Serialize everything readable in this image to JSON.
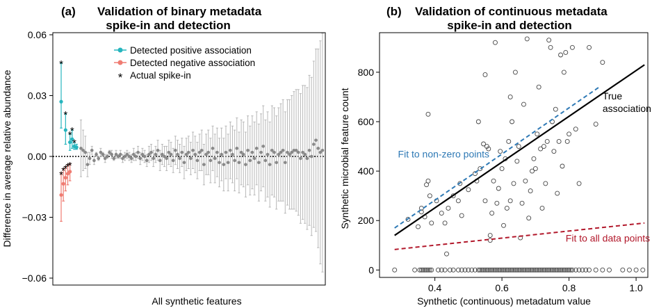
{
  "chart_data": [
    {
      "type": "scatter",
      "panel_label": "(a)",
      "title": [
        "Validation of binary metadata",
        "spike-in and detection"
      ],
      "xlabel": "All synthetic features",
      "ylabel": "Difference in average relative abundance",
      "ylim": [
        -0.06,
        0.06
      ],
      "yticks": [
        -0.06,
        -0.03,
        0.0,
        0.03,
        0.06
      ],
      "ytick_labels": [
        "−0.06",
        "−0.03",
        "0.00",
        "0.03",
        "0.06"
      ],
      "legend": [
        {
          "label": "Detected positive association",
          "color": "#26b5be",
          "marker": "dot-line"
        },
        {
          "label": "Detected negative association",
          "color": "#ef7c72",
          "marker": "dot-line"
        },
        {
          "label": "Actual spike-in",
          "color": "#000000",
          "marker": "*"
        }
      ],
      "spike_marker": "*",
      "zero_line": "dotted",
      "n_features": 120,
      "colors": {
        "positive": "#26b5be",
        "negative": "#ef7c72",
        "other": "#888888",
        "errorbar": "#b8b8b8"
      },
      "positive": [
        {
          "x": 1,
          "y": 0.027,
          "lo": 0.014,
          "hi": 0.046,
          "spike": true
        },
        {
          "x": 3,
          "y": 0.013,
          "lo": 0.006,
          "hi": 0.021,
          "spike": true
        },
        {
          "x": 5,
          "y": 0.007,
          "lo": 0.003,
          "hi": 0.011,
          "spike": true
        },
        {
          "x": 6,
          "y": 0.0085,
          "lo": 0.004,
          "hi": 0.013,
          "spike": true
        },
        {
          "x": 7,
          "y": 0.005,
          "lo": 0.0035,
          "hi": 0.007,
          "spike": true
        },
        {
          "x": 8,
          "y": 0.0045,
          "lo": 0.0035,
          "hi": 0.006,
          "spike": false
        }
      ],
      "negative": [
        {
          "x": 1,
          "y": -0.019,
          "lo": -0.032,
          "hi": -0.008,
          "spike": true
        },
        {
          "x": 2,
          "y": -0.0135,
          "lo": -0.022,
          "hi": -0.006,
          "spike": true
        },
        {
          "x": 3,
          "y": -0.0105,
          "lo": -0.017,
          "hi": -0.005,
          "spike": true
        },
        {
          "x": 4,
          "y": -0.0085,
          "lo": -0.014,
          "hi": -0.004,
          "spike": true
        },
        {
          "x": 5,
          "y": -0.0075,
          "lo": -0.012,
          "hi": -0.0035,
          "spike": true
        }
      ],
      "others": {
        "x_start": 10,
        "y": [
          0.004,
          0.003,
          0.002,
          -0.004,
          -0.001,
          0.003,
          -0.002,
          0.001,
          -0.001,
          0.002,
          0.001,
          -0.001,
          0.0,
          0.002,
          0.001,
          -0.001,
          0.001,
          0.0,
          0.001,
          -0.001,
          0.0,
          0.001,
          0.0,
          -0.001,
          0.001,
          0.0,
          0.002,
          -0.001,
          0.001,
          0.0,
          -0.002,
          0.001,
          0.002,
          -0.001,
          0.001,
          0.003,
          -0.002,
          0.001,
          0.0,
          -0.001,
          0.002,
          0.001,
          -0.002,
          0.003,
          0.001,
          -0.001,
          0.002,
          -0.003,
          0.001,
          0.002,
          -0.001,
          0.003,
          0.001,
          -0.002,
          0.002,
          0.003,
          -0.004,
          0.001,
          0.002,
          -0.002,
          0.004,
          -0.001,
          0.002,
          -0.003,
          0.001,
          -0.004,
          0.002,
          -0.003,
          0.003,
          0.001,
          -0.002,
          0.004,
          -0.003,
          0.002,
          0.001,
          -0.004,
          0.003,
          -0.002,
          0.002,
          -0.001,
          0.004,
          -0.003,
          0.002,
          0.005,
          -0.002,
          0.001,
          -0.004,
          0.003,
          0.002,
          -0.003,
          0.001,
          0.002,
          0.003,
          -0.003,
          0.002,
          0.001,
          0.002,
          0.003,
          0.003,
          0.002,
          -0.001,
          0.002,
          0.001,
          -0.001,
          0.003,
          0.0,
          0.006,
          0.008,
          0.004,
          0.002,
          0.003
        ],
        "half_width": [
          0.014,
          0.01,
          0.008,
          0.006,
          0.003,
          0.002,
          0.002,
          0.001,
          0.001,
          0.002,
          0.001,
          0.002,
          0.001,
          0.001,
          0.002,
          0.001,
          0.002,
          0.001,
          0.002,
          0.002,
          0.002,
          0.002,
          0.002,
          0.002,
          0.003,
          0.002,
          0.003,
          0.003,
          0.003,
          0.003,
          0.003,
          0.004,
          0.004,
          0.004,
          0.004,
          0.005,
          0.005,
          0.005,
          0.005,
          0.006,
          0.006,
          0.006,
          0.006,
          0.007,
          0.007,
          0.007,
          0.007,
          0.008,
          0.008,
          0.008,
          0.008,
          0.009,
          0.009,
          0.009,
          0.009,
          0.01,
          0.01,
          0.01,
          0.011,
          0.011,
          0.011,
          0.012,
          0.012,
          0.012,
          0.013,
          0.013,
          0.013,
          0.014,
          0.014,
          0.014,
          0.015,
          0.015,
          0.015,
          0.016,
          0.016,
          0.016,
          0.017,
          0.017,
          0.018,
          0.018,
          0.018,
          0.019,
          0.019,
          0.02,
          0.02,
          0.021,
          0.021,
          0.022,
          0.022,
          0.023,
          0.023,
          0.024,
          0.025,
          0.025,
          0.026,
          0.027,
          0.028,
          0.029,
          0.03,
          0.031,
          0.032,
          0.033,
          0.034,
          0.035,
          0.037,
          0.039,
          0.041,
          0.045,
          0.049,
          0.055,
          0.06
        ]
      }
    },
    {
      "type": "scatter",
      "panel_label": "(b)",
      "title": [
        "Validation of continuous metadata",
        "spike-in and detection"
      ],
      "xlabel": "Synthetic (continuous) metadatum value",
      "ylabel": "Synthetic microbial feature count",
      "xlim": [
        0.235,
        1.035
      ],
      "ylim": [
        -30,
        960
      ],
      "xticks": [
        0.4,
        0.6,
        0.8,
        1.0
      ],
      "xtick_labels": [
        "0.4",
        "0.6",
        "0.8",
        "1.0"
      ],
      "yticks": [
        0,
        200,
        400,
        600,
        800
      ],
      "ytick_labels": [
        "0",
        "200",
        "400",
        "600",
        "800"
      ],
      "lines": [
        {
          "name": "True association",
          "x": [
            0.28,
            1.025
          ],
          "y": [
            140,
            830
          ],
          "color": "#000000",
          "style": "solid"
        },
        {
          "name": "Fit to non-zero points",
          "x": [
            0.28,
            0.89
          ],
          "y": [
            170,
            740
          ],
          "color": "#2e79b5",
          "style": "dashed"
        },
        {
          "name": "Fit to all data points",
          "x": [
            0.28,
            1.025
          ],
          "y": [
            83,
            190
          ],
          "color": "#b2182b",
          "style": "dashed"
        }
      ],
      "annotations": [
        {
          "text": "True",
          "color": "#000000",
          "x": 0.9,
          "y": 690
        },
        {
          "text": "association",
          "color": "#000000",
          "x": 0.9,
          "y": 640
        },
        {
          "text": "Fit to non-zero points",
          "color": "#2e79b5",
          "x": 0.29,
          "y": 455
        },
        {
          "text": "Fit to all data points",
          "color": "#b2182b",
          "x": 0.79,
          "y": 115
        }
      ],
      "points_nonzero": [
        [
          0.32,
          205
        ],
        [
          0.35,
          175
        ],
        [
          0.36,
          250
        ],
        [
          0.36,
          235
        ],
        [
          0.37,
          215
        ],
        [
          0.375,
          345
        ],
        [
          0.38,
          360
        ],
        [
          0.38,
          630
        ],
        [
          0.385,
          300
        ],
        [
          0.39,
          190
        ],
        [
          0.405,
          280
        ],
        [
          0.42,
          230
        ],
        [
          0.43,
          190
        ],
        [
          0.435,
          65
        ],
        [
          0.44,
          250
        ],
        [
          0.455,
          300
        ],
        [
          0.47,
          280
        ],
        [
          0.475,
          350
        ],
        [
          0.48,
          220
        ],
        [
          0.5,
          325
        ],
        [
          0.52,
          390
        ],
        [
          0.525,
          360
        ],
        [
          0.53,
          600
        ],
        [
          0.535,
          410
        ],
        [
          0.545,
          510
        ],
        [
          0.55,
          280
        ],
        [
          0.55,
          790
        ],
        [
          0.555,
          500
        ],
        [
          0.56,
          490
        ],
        [
          0.565,
          140
        ],
        [
          0.565,
          120
        ],
        [
          0.57,
          230
        ],
        [
          0.575,
          360
        ],
        [
          0.58,
          920
        ],
        [
          0.585,
          270
        ],
        [
          0.59,
          330
        ],
        [
          0.595,
          480
        ],
        [
          0.6,
          410
        ],
        [
          0.605,
          180
        ],
        [
          0.61,
          450
        ],
        [
          0.615,
          250
        ],
        [
          0.62,
          520
        ],
        [
          0.625,
          700
        ],
        [
          0.625,
          280
        ],
        [
          0.63,
          600
        ],
        [
          0.635,
          350
        ],
        [
          0.64,
          800
        ],
        [
          0.645,
          440
        ],
        [
          0.65,
          500
        ],
        [
          0.655,
          130
        ],
        [
          0.66,
          270
        ],
        [
          0.665,
          670
        ],
        [
          0.67,
          360
        ],
        [
          0.675,
          935
        ],
        [
          0.68,
          210
        ],
        [
          0.685,
          320
        ],
        [
          0.69,
          400
        ],
        [
          0.695,
          450
        ],
        [
          0.7,
          410
        ],
        [
          0.705,
          550
        ],
        [
          0.71,
          740
        ],
        [
          0.715,
          490
        ],
        [
          0.72,
          250
        ],
        [
          0.725,
          500
        ],
        [
          0.73,
          350
        ],
        [
          0.735,
          520
        ],
        [
          0.74,
          930
        ],
        [
          0.745,
          900
        ],
        [
          0.75,
          600
        ],
        [
          0.755,
          480
        ],
        [
          0.76,
          650
        ],
        [
          0.765,
          310
        ],
        [
          0.77,
          520
        ],
        [
          0.775,
          870
        ],
        [
          0.78,
          420
        ],
        [
          0.785,
          800
        ],
        [
          0.79,
          880
        ],
        [
          0.795,
          520
        ],
        [
          0.8,
          550
        ],
        [
          0.81,
          900
        ],
        [
          0.82,
          570
        ],
        [
          0.83,
          350
        ],
        [
          0.86,
          900
        ],
        [
          0.88,
          590
        ],
        [
          0.9,
          840
        ]
      ],
      "points_zero_x": [
        0.28,
        0.34,
        0.355,
        0.36,
        0.365,
        0.37,
        0.375,
        0.38,
        0.385,
        0.39,
        0.41,
        0.42,
        0.43,
        0.445,
        0.455,
        0.47,
        0.48,
        0.49,
        0.5,
        0.51,
        0.52,
        0.53,
        0.535,
        0.54,
        0.545,
        0.55,
        0.555,
        0.56,
        0.565,
        0.57,
        0.575,
        0.58,
        0.585,
        0.59,
        0.595,
        0.6,
        0.605,
        0.61,
        0.615,
        0.62,
        0.625,
        0.63,
        0.635,
        0.64,
        0.645,
        0.65,
        0.655,
        0.66,
        0.665,
        0.67,
        0.675,
        0.68,
        0.685,
        0.69,
        0.695,
        0.7,
        0.705,
        0.71,
        0.715,
        0.72,
        0.725,
        0.73,
        0.735,
        0.74,
        0.745,
        0.75,
        0.755,
        0.76,
        0.765,
        0.77,
        0.775,
        0.78,
        0.785,
        0.79,
        0.795,
        0.8,
        0.805,
        0.81,
        0.82,
        0.83,
        0.84,
        0.85,
        0.86,
        0.88,
        0.9,
        0.92,
        0.96,
        0.98,
        1.0,
        1.02
      ]
    }
  ]
}
